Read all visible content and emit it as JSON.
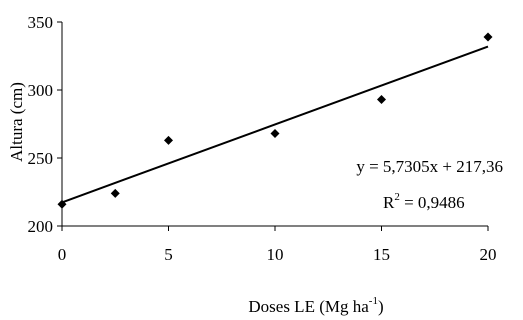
{
  "chart_data": {
    "type": "scatter",
    "xlabel_main": "Doses LE (Mg ha",
    "xlabel_sup": "-1",
    "xlabel_end": ")",
    "ylabel": "Altura (cm)",
    "xlim": [
      0,
      20
    ],
    "ylim": [
      200,
      350
    ],
    "xticks": [
      0,
      5,
      10,
      15,
      20
    ],
    "yticks": [
      200,
      250,
      300,
      350
    ],
    "grid": false,
    "points": [
      {
        "x": 0,
        "y": 216
      },
      {
        "x": 2.5,
        "y": 224
      },
      {
        "x": 5,
        "y": 263
      },
      {
        "x": 10,
        "y": 268
      },
      {
        "x": 15,
        "y": 293
      },
      {
        "x": 20,
        "y": 339
      }
    ],
    "trendline": {
      "slope": 5.7305,
      "intercept": 217.36
    },
    "equation": "y = 5,7305x + 217,36",
    "r2_label": "R",
    "r2_sup": "2",
    "r2_value": " = 0,9486",
    "marker": "diamond",
    "color": "#000000"
  }
}
